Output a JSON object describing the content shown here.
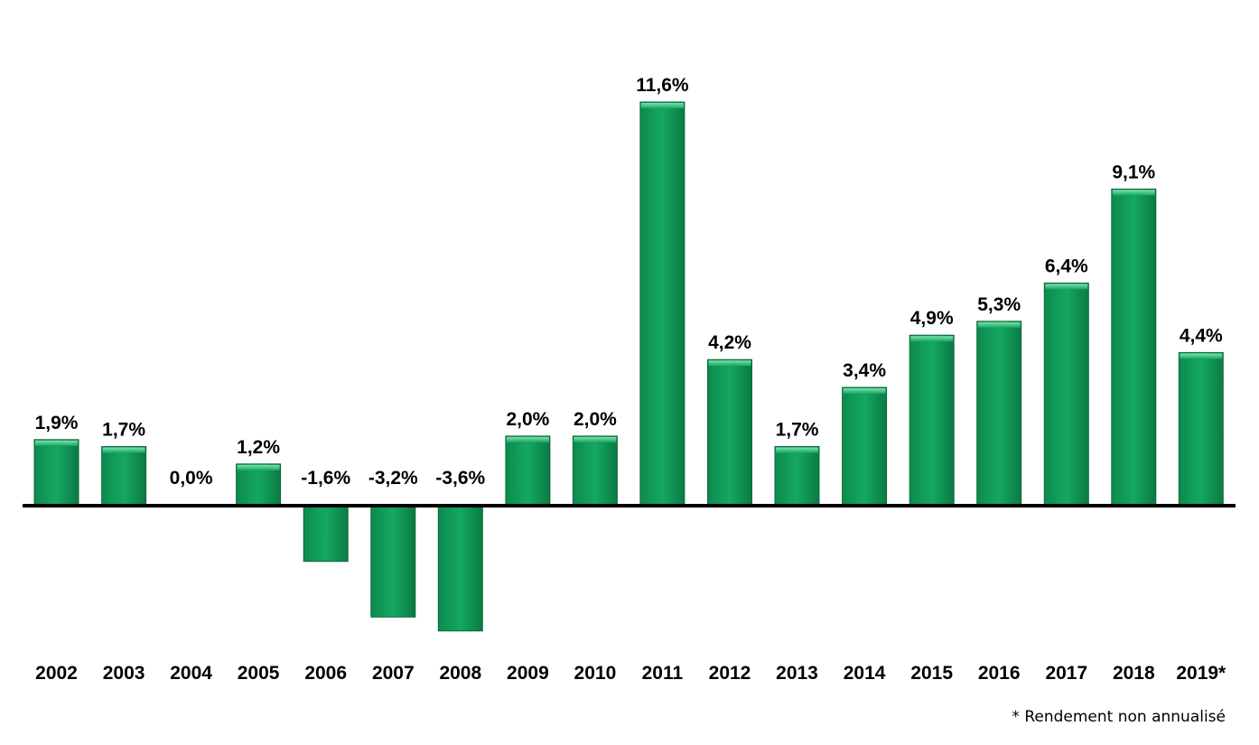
{
  "chart_data": {
    "type": "bar",
    "categories": [
      "2002",
      "2003",
      "2004",
      "2005",
      "2006",
      "2007",
      "2008",
      "2009",
      "2010",
      "2011",
      "2012",
      "2013",
      "2014",
      "2015",
      "2016",
      "2017",
      "2018",
      "2019*"
    ],
    "values": [
      1.9,
      1.7,
      0.0,
      1.2,
      -1.6,
      -3.2,
      -3.6,
      2.0,
      2.0,
      11.6,
      4.2,
      1.7,
      3.4,
      4.9,
      5.3,
      6.4,
      9.1,
      4.4
    ],
    "labels": [
      "1,9%",
      "1,7%",
      "0,0%",
      "1,2%",
      "-1,6%",
      "-3,2%",
      "-3,6%",
      "2,0%",
      "2,0%",
      "11,6%",
      "4,2%",
      "1,7%",
      "3,4%",
      "4,9%",
      "5,3%",
      "6,4%",
      "9,1%",
      "4,4%"
    ],
    "ylim": [
      -3.6,
      11.6
    ],
    "grid": false,
    "legend": "none",
    "colors": {
      "bar": "#12a05c",
      "bar_dark": "#0b7a43",
      "bar_light": "#5fd39a",
      "axis": "#000000"
    }
  },
  "footnote": "* Rendement non annualisé"
}
